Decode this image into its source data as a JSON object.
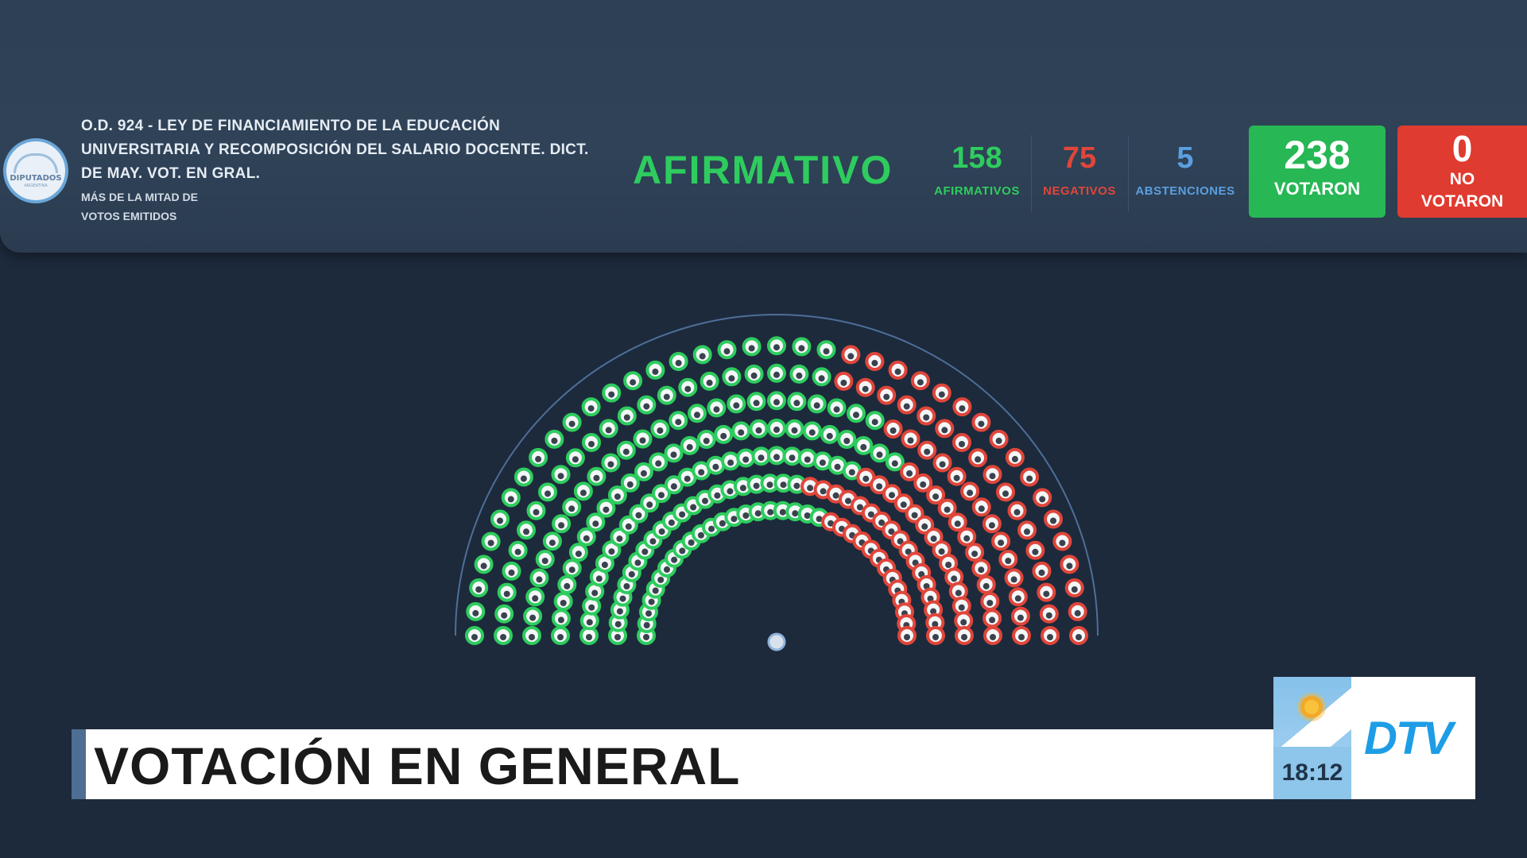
{
  "header": {
    "logo_text": "DIPUTADOS",
    "logo_subtext": "ARGENTINA",
    "title_lines": [
      "O.D. 924 - LEY DE FINANCIAMIENTO DE LA EDUCACIÓN",
      "UNIVERSITARIA Y RECOMPOSICIÓN DEL SALARIO DOCENTE. DICT.",
      "DE MAY. VOT. EN GRAL."
    ],
    "majority_lines": [
      "MÁS DE LA MITAD DE",
      "VOTOS EMITIDOS"
    ],
    "result": "AFIRMATIVO"
  },
  "stats": {
    "afirmativos": {
      "value": "158",
      "label": "AFIRMATIVOS"
    },
    "negativos": {
      "value": "75",
      "label": "NEGATIVOS"
    },
    "abstenciones": {
      "value": "5",
      "label": "ABSTENCIONES"
    },
    "votaron": {
      "value": "238",
      "label": "VOTARON"
    },
    "no_votaron": {
      "value": "0",
      "label_line1": "NO",
      "label_line2": "VOTARON"
    }
  },
  "colors": {
    "afirmativo": "#2ecc5e",
    "negativo": "#e0463a",
    "abstencion": "#5b9fe0",
    "ausente": "#8a9099",
    "president": "#d9e2ec"
  },
  "chamber": {
    "rows": [
      {
        "seats": "AAAAAAAAAAAAAAAAAAAAAANNNNNNNNNNNNNNNNN"
      },
      {
        "seats": "AAAAAAAAAAAAAAAAAAAAAANNNNNNNNNNNNNNNNN"
      },
      {
        "seats": "AAAAAAAAAAAAAAAAAAAAAAAAANNNNNNNNNNNNNN"
      },
      {
        "seats": "AAAAAAAAAAAAAAAAAAAAAAAAAAANNNNNNNNNNNN"
      },
      {
        "seats": "AAAAAAAAAAAAAAAAAAAAAAAAANNNNNNNNNNNNNN"
      },
      {
        "seats": "AAAAAAAAAAAAAAAAAAAAANNNNNNNNNNNNNNNNN"
      },
      {
        "seats": "AAAAAAAAAAAAAAAAAAAAANNNNNNNNNNNNN"
      }
    ],
    "president_seat": "P"
  },
  "lower_third": {
    "title": "VOTACIÓN EN GENERAL",
    "time": "18:12",
    "channel_logo": "DTV"
  }
}
